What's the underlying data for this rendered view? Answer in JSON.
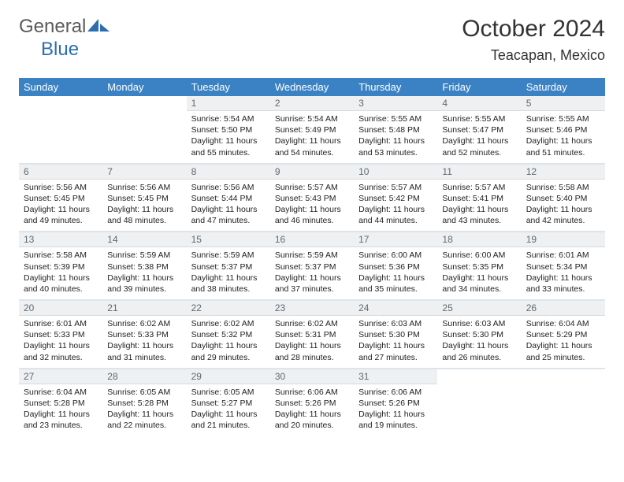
{
  "brand": {
    "part1": "General",
    "part2": "Blue"
  },
  "title": "October 2024",
  "location": "Teacapan, Mexico",
  "colors": {
    "header_bg": "#3b82c4",
    "header_text": "#ffffff",
    "daynum_bg": "#eef0f1",
    "daynum_text": "#5f6a72",
    "body_bg": "#ffffff",
    "text": "#222222",
    "logo_gray": "#5a5a5a",
    "logo_blue": "#2c6fb0"
  },
  "weekdays": [
    "Sunday",
    "Monday",
    "Tuesday",
    "Wednesday",
    "Thursday",
    "Friday",
    "Saturday"
  ],
  "weeks": [
    [
      null,
      null,
      {
        "n": "1",
        "sr": "5:54 AM",
        "ss": "5:50 PM",
        "dl": "11 hours and 55 minutes."
      },
      {
        "n": "2",
        "sr": "5:54 AM",
        "ss": "5:49 PM",
        "dl": "11 hours and 54 minutes."
      },
      {
        "n": "3",
        "sr": "5:55 AM",
        "ss": "5:48 PM",
        "dl": "11 hours and 53 minutes."
      },
      {
        "n": "4",
        "sr": "5:55 AM",
        "ss": "5:47 PM",
        "dl": "11 hours and 52 minutes."
      },
      {
        "n": "5",
        "sr": "5:55 AM",
        "ss": "5:46 PM",
        "dl": "11 hours and 51 minutes."
      }
    ],
    [
      {
        "n": "6",
        "sr": "5:56 AM",
        "ss": "5:45 PM",
        "dl": "11 hours and 49 minutes."
      },
      {
        "n": "7",
        "sr": "5:56 AM",
        "ss": "5:45 PM",
        "dl": "11 hours and 48 minutes."
      },
      {
        "n": "8",
        "sr": "5:56 AM",
        "ss": "5:44 PM",
        "dl": "11 hours and 47 minutes."
      },
      {
        "n": "9",
        "sr": "5:57 AM",
        "ss": "5:43 PM",
        "dl": "11 hours and 46 minutes."
      },
      {
        "n": "10",
        "sr": "5:57 AM",
        "ss": "5:42 PM",
        "dl": "11 hours and 44 minutes."
      },
      {
        "n": "11",
        "sr": "5:57 AM",
        "ss": "5:41 PM",
        "dl": "11 hours and 43 minutes."
      },
      {
        "n": "12",
        "sr": "5:58 AM",
        "ss": "5:40 PM",
        "dl": "11 hours and 42 minutes."
      }
    ],
    [
      {
        "n": "13",
        "sr": "5:58 AM",
        "ss": "5:39 PM",
        "dl": "11 hours and 40 minutes."
      },
      {
        "n": "14",
        "sr": "5:59 AM",
        "ss": "5:38 PM",
        "dl": "11 hours and 39 minutes."
      },
      {
        "n": "15",
        "sr": "5:59 AM",
        "ss": "5:37 PM",
        "dl": "11 hours and 38 minutes."
      },
      {
        "n": "16",
        "sr": "5:59 AM",
        "ss": "5:37 PM",
        "dl": "11 hours and 37 minutes."
      },
      {
        "n": "17",
        "sr": "6:00 AM",
        "ss": "5:36 PM",
        "dl": "11 hours and 35 minutes."
      },
      {
        "n": "18",
        "sr": "6:00 AM",
        "ss": "5:35 PM",
        "dl": "11 hours and 34 minutes."
      },
      {
        "n": "19",
        "sr": "6:01 AM",
        "ss": "5:34 PM",
        "dl": "11 hours and 33 minutes."
      }
    ],
    [
      {
        "n": "20",
        "sr": "6:01 AM",
        "ss": "5:33 PM",
        "dl": "11 hours and 32 minutes."
      },
      {
        "n": "21",
        "sr": "6:02 AM",
        "ss": "5:33 PM",
        "dl": "11 hours and 31 minutes."
      },
      {
        "n": "22",
        "sr": "6:02 AM",
        "ss": "5:32 PM",
        "dl": "11 hours and 29 minutes."
      },
      {
        "n": "23",
        "sr": "6:02 AM",
        "ss": "5:31 PM",
        "dl": "11 hours and 28 minutes."
      },
      {
        "n": "24",
        "sr": "6:03 AM",
        "ss": "5:30 PM",
        "dl": "11 hours and 27 minutes."
      },
      {
        "n": "25",
        "sr": "6:03 AM",
        "ss": "5:30 PM",
        "dl": "11 hours and 26 minutes."
      },
      {
        "n": "26",
        "sr": "6:04 AM",
        "ss": "5:29 PM",
        "dl": "11 hours and 25 minutes."
      }
    ],
    [
      {
        "n": "27",
        "sr": "6:04 AM",
        "ss": "5:28 PM",
        "dl": "11 hours and 23 minutes."
      },
      {
        "n": "28",
        "sr": "6:05 AM",
        "ss": "5:28 PM",
        "dl": "11 hours and 22 minutes."
      },
      {
        "n": "29",
        "sr": "6:05 AM",
        "ss": "5:27 PM",
        "dl": "11 hours and 21 minutes."
      },
      {
        "n": "30",
        "sr": "6:06 AM",
        "ss": "5:26 PM",
        "dl": "11 hours and 20 minutes."
      },
      {
        "n": "31",
        "sr": "6:06 AM",
        "ss": "5:26 PM",
        "dl": "11 hours and 19 minutes."
      },
      null,
      null
    ]
  ],
  "labels": {
    "sunrise": "Sunrise:",
    "sunset": "Sunset:",
    "daylight": "Daylight:"
  }
}
